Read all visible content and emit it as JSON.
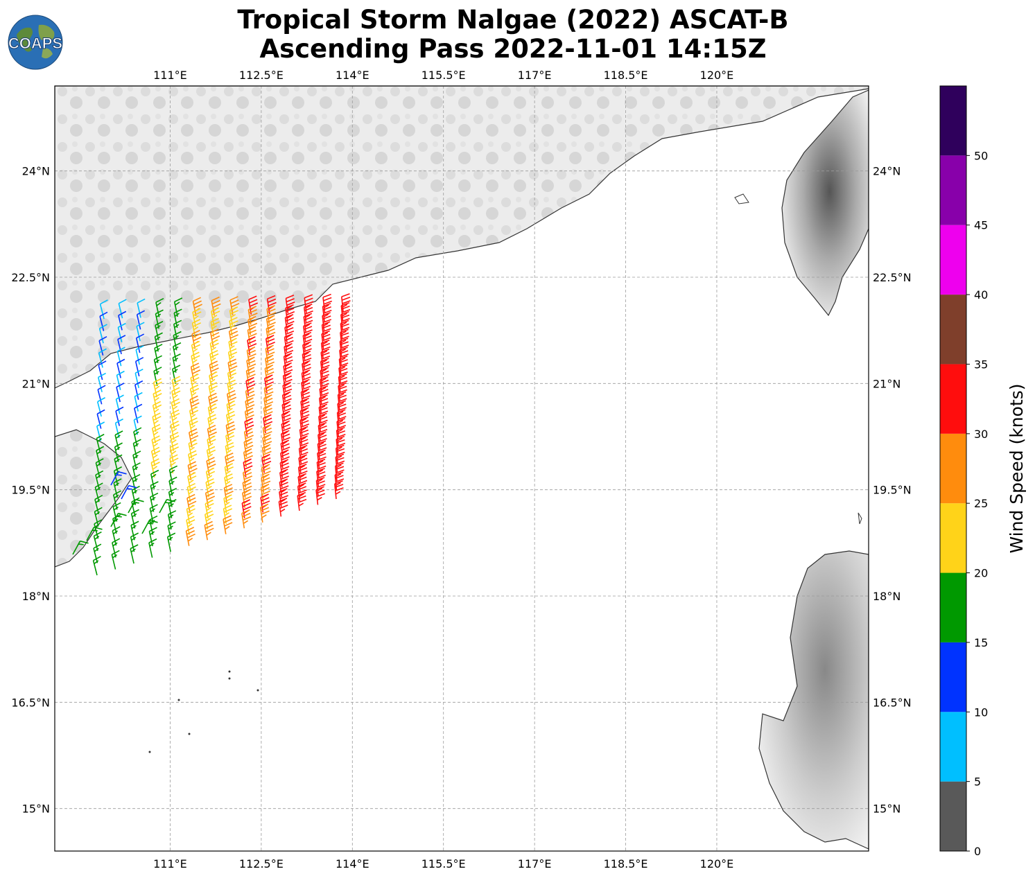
{
  "header": {
    "title_line1": "Tropical Storm Nalgae (2022) ASCAT-B",
    "title_line2": "Ascending Pass 2022-11-01 14:15Z",
    "logo_text": "COAPS"
  },
  "map": {
    "lon_range": [
      109.1,
      122.5
    ],
    "lat_range": [
      14.4,
      25.2
    ],
    "lon_ticks": [
      "111°E",
      "112.5°E",
      "114°E",
      "115.5°E",
      "117°E",
      "118.5°E",
      "120°E"
    ],
    "lat_ticks": [
      "24°N",
      "22.5°N",
      "21°N",
      "19.5°N",
      "18°N",
      "16.5°N",
      "15°N"
    ],
    "gridlines": true,
    "land_shading": "grayscale terrain",
    "coastline_color": "#333333"
  },
  "colorbar": {
    "title": "Wind Speed (knots)",
    "ticks": [
      "0",
      "5",
      "10",
      "15",
      "20",
      "25",
      "30",
      "35",
      "40",
      "45",
      "50"
    ],
    "colors": [
      "#595959",
      "#00bfff",
      "#0033ff",
      "#009900",
      "#ffd319",
      "#ff8c0d",
      "#ff0d0d",
      "#7f3f2b",
      "#ee00ee",
      "#8800aa",
      "#2f005c"
    ]
  },
  "chart_data": {
    "type": "wind_barbs",
    "units": "knots",
    "swath": {
      "description_note": "",
      "bins": [
        {
          "range": "0-5",
          "color": "#595959"
        },
        {
          "range": "5-10",
          "color": "#00bfff"
        },
        {
          "range": "10-15",
          "color": "#0033ff"
        },
        {
          "range": "15-20",
          "color": "#009900"
        },
        {
          "range": "20-25",
          "color": "#ffd319"
        },
        {
          "range": "25-30",
          "color": "#ff8c0d"
        },
        {
          "range": "30-35",
          "color": "#ff0d0d"
        }
      ]
    }
  }
}
